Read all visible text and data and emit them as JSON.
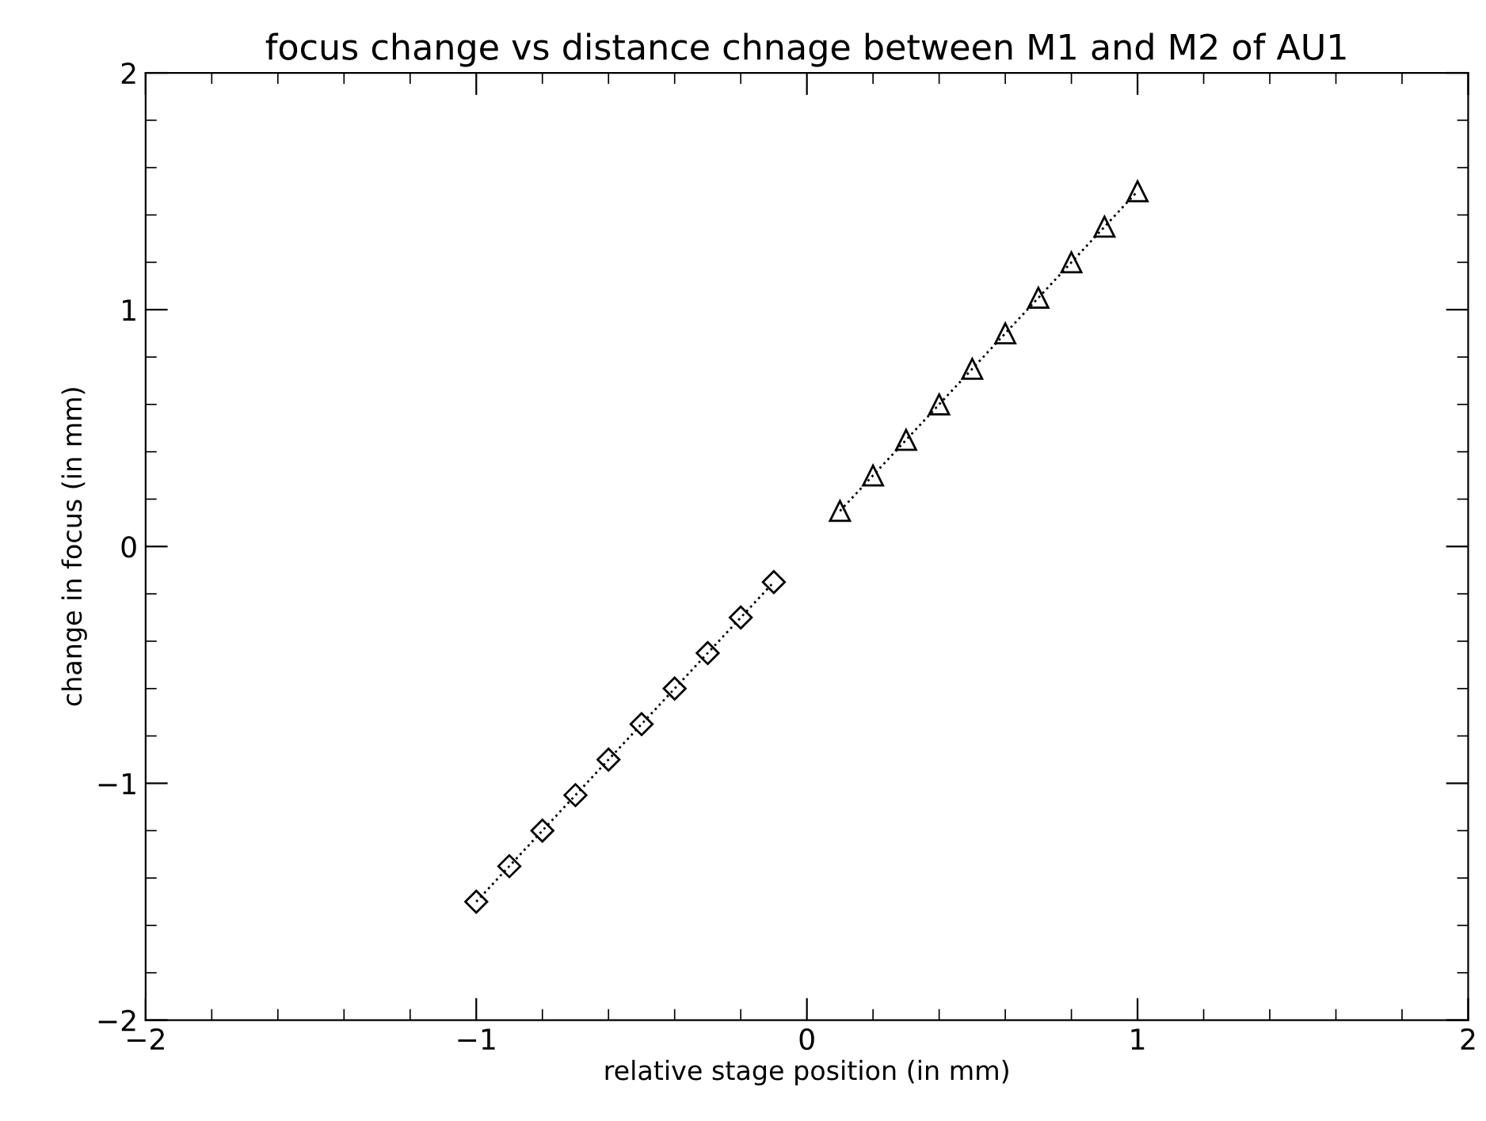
{
  "chart_data": {
    "type": "line",
    "title": "focus change vs distance chnage between M1 and M2 of AU1",
    "xlabel": "relative stage position (in mm)",
    "ylabel": "change in focus (in mm)",
    "series": [
      {
        "x": [
          -1,
          -0.9,
          -0.8,
          -0.7,
          -0.6,
          -0.5,
          -0.4,
          -0.3,
          -0.2,
          -0.1
        ],
        "values": [
          -1.5,
          -1.35,
          -1.2,
          -1.05,
          -0.9,
          -0.75,
          -0.6,
          -0.45,
          -0.3,
          -0.15
        ],
        "color": "#000000",
        "marker": "diamond",
        "line_style": "dotted"
      },
      {
        "x": [
          0.1,
          0.2,
          0.3,
          0.4,
          0.5,
          0.6,
          0.7,
          0.8,
          0.9,
          1
        ],
        "values": [
          0.15,
          0.3,
          0.45,
          0.6,
          0.75,
          0.9,
          1.05,
          1.2,
          1.35,
          1.5
        ],
        "color": "#000000",
        "marker": "triangle",
        "line_style": "dotted"
      }
    ],
    "xlim": [
      -2,
      2
    ],
    "ylim": [
      -2,
      2
    ],
    "xticks": [
      {
        "value": -2,
        "label": "−2"
      },
      {
        "value": -1,
        "label": "−1"
      },
      0,
      1,
      2
    ],
    "yticks": [
      {
        "value": -2,
        "label": "−2"
      },
      {
        "value": -1,
        "label": "−1"
      },
      0,
      1,
      2
    ],
    "grid": false,
    "legend": false
  }
}
